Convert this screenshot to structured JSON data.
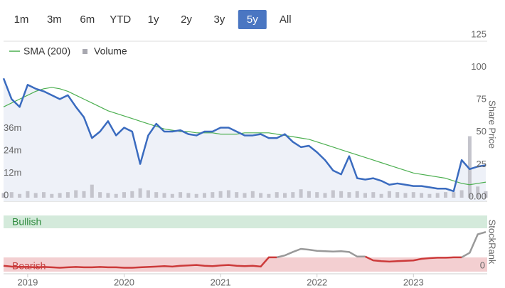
{
  "range_buttons": [
    {
      "label": "1m",
      "active": false
    },
    {
      "label": "3m",
      "active": false
    },
    {
      "label": "6m",
      "active": false
    },
    {
      "label": "YTD",
      "active": false
    },
    {
      "label": "1y",
      "active": false
    },
    {
      "label": "2y",
      "active": false
    },
    {
      "label": "3y",
      "active": false
    },
    {
      "label": "5y",
      "active": true
    },
    {
      "label": "All",
      "active": false
    }
  ],
  "chart_data": [
    {
      "type": "line",
      "ylabel": "Share Price",
      "legend": "top-left",
      "grid": false,
      "categories": [
        null,
        null,
        null,
        "2019",
        null,
        null,
        null,
        null,
        null,
        null,
        null,
        null,
        null,
        null,
        null,
        "2020",
        null,
        null,
        null,
        null,
        null,
        null,
        null,
        null,
        null,
        null,
        null,
        "2021",
        null,
        null,
        null,
        null,
        null,
        null,
        null,
        null,
        null,
        null,
        null,
        "2022",
        null,
        null,
        null,
        null,
        null,
        null,
        null,
        null,
        null,
        null,
        null,
        "2023",
        null,
        null,
        null,
        null,
        null,
        null,
        null,
        null,
        null
      ],
      "values": [
        92,
        76,
        70,
        87,
        84,
        82,
        79,
        76,
        79,
        70,
        62,
        46,
        51,
        59,
        48,
        54,
        51,
        26,
        48,
        57,
        51,
        51,
        52,
        49,
        48,
        51,
        51,
        54,
        54,
        51,
        48,
        48,
        49,
        46,
        46,
        49,
        43,
        39,
        40,
        35,
        29,
        21,
        18,
        32,
        15,
        14,
        15,
        13,
        10,
        11,
        10,
        9,
        9,
        8,
        7,
        7,
        5,
        29,
        22,
        24,
        25
      ],
      "color": "#3a6bbf",
      "series": [
        {
          "name": "SMA (200)",
          "color": "#4caf50",
          "values": [
            70,
            73,
            76,
            79,
            82,
            84,
            85,
            84,
            82,
            79,
            76,
            73,
            70,
            67,
            65,
            63,
            61,
            59,
            57,
            55,
            53,
            52,
            51,
            51,
            50,
            50,
            50,
            49,
            49,
            49,
            50,
            50,
            50,
            50,
            49,
            48,
            47,
            46,
            45,
            43,
            41,
            39,
            37,
            35,
            33,
            31,
            29,
            27,
            25,
            23,
            21,
            19,
            18,
            17,
            16,
            15,
            13,
            11,
            10,
            11,
            12
          ]
        },
        {
          "name": "Volume",
          "color": "#c4c4cc",
          "axis": "y2",
          "values": [
            2500000,
            3000000,
            2000000,
            3500000,
            2500000,
            3000000,
            2000000,
            2500000,
            3000000,
            4000000,
            3500000,
            7000000,
            3000000,
            2500000,
            2000000,
            3000000,
            3500000,
            5000000,
            4000000,
            3000000,
            2500000,
            2000000,
            3000000,
            2500000,
            2000000,
            2500000,
            3000000,
            3500000,
            4000000,
            3000000,
            2500000,
            3500000,
            2500000,
            2000000,
            3000000,
            2500000,
            3000000,
            4500000,
            3500000,
            3000000,
            2500000,
            4000000,
            3500000,
            3000000,
            3500000,
            2500000,
            3000000,
            2000000,
            3500000,
            3000000,
            2500000,
            3000000,
            2500000,
            2000000,
            2500000,
            3000000,
            3000000,
            4000000,
            33000000,
            6000000,
            3500000
          ]
        }
      ],
      "ylim": [
        0,
        125
      ],
      "yticks": [
        {
          "value": 0,
          "label": "0.00"
        },
        25,
        50,
        75,
        100,
        125
      ],
      "y2lim": [
        0,
        87000000
      ],
      "y2ticks": [
        0,
        {
          "value": 12000000,
          "label": "12m"
        },
        {
          "value": 24000000,
          "label": "24m"
        },
        {
          "value": 36000000,
          "label": "36m"
        }
      ]
    },
    {
      "type": "line",
      "ylabel": "StockRank",
      "bands": [
        "Bullish",
        "Bearish"
      ],
      "ylim": [
        0,
        100
      ],
      "yticks": [
        0
      ],
      "values": [
        6,
        4,
        3,
        3,
        2,
        3,
        2,
        1,
        2,
        3,
        2,
        2,
        3,
        2,
        2,
        1,
        1,
        2,
        3,
        4,
        5,
        4,
        6,
        7,
        8,
        6,
        5,
        7,
        8,
        6,
        5,
        6,
        4,
        28,
        28,
        33,
        42,
        50,
        48,
        45,
        44,
        43,
        44,
        42,
        30,
        30,
        20,
        18,
        17,
        18,
        19,
        20,
        24,
        26,
        27,
        27,
        28,
        28,
        40,
        88,
        94
      ],
      "colors": [
        "#cc3a3a",
        "#cc3a3a",
        "#cc3a3a",
        "#cc3a3a",
        "#cc3a3a",
        "#cc3a3a",
        "#cc3a3a",
        "#cc3a3a",
        "#cc3a3a",
        "#cc3a3a",
        "#cc3a3a",
        "#cc3a3a",
        "#cc3a3a",
        "#cc3a3a",
        "#cc3a3a",
        "#cc3a3a",
        "#cc3a3a",
        "#cc3a3a",
        "#cc3a3a",
        "#cc3a3a",
        "#cc3a3a",
        "#cc3a3a",
        "#cc3a3a",
        "#cc3a3a",
        "#cc3a3a",
        "#cc3a3a",
        "#cc3a3a",
        "#cc3a3a",
        "#cc3a3a",
        "#cc3a3a",
        "#cc3a3a",
        "#cc3a3a",
        "#cc3a3a",
        "#cc3a3a",
        "#cc3a3a",
        "#999999",
        "#999999",
        "#999999",
        "#999999",
        "#999999",
        "#999999",
        "#999999",
        "#999999",
        "#999999",
        "#999999",
        "#999999",
        "#cc3a3a",
        "#cc3a3a",
        "#cc3a3a",
        "#cc3a3a",
        "#cc3a3a",
        "#cc3a3a",
        "#cc3a3a",
        "#cc3a3a",
        "#cc3a3a",
        "#cc3a3a",
        "#cc3a3a",
        "#cc3a3a",
        "#999999",
        "#999999",
        "#999999"
      ]
    }
  ]
}
